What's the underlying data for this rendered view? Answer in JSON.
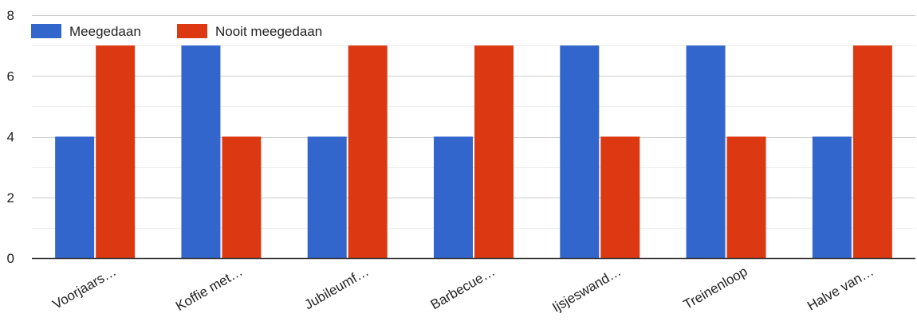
{
  "chart_data": {
    "type": "bar",
    "categories": [
      "Voorjaars…",
      "Koffie met…",
      "Jubileumf…",
      "Barbecue…",
      "Ijsjeswand…",
      "Treinenloop",
      "Halve van…"
    ],
    "series": [
      {
        "name": "Meegedaan",
        "color": "#3366cc",
        "values": [
          4,
          7,
          4,
          4,
          7,
          7,
          4
        ]
      },
      {
        "name": "Nooit meegedaan",
        "color": "#dc3912",
        "values": [
          7,
          4,
          7,
          7,
          4,
          4,
          7
        ]
      }
    ],
    "ylim": [
      0,
      8
    ],
    "yticks": [
      0,
      2,
      4,
      6,
      8
    ],
    "grid": true,
    "legend": "top-left",
    "title": "",
    "xlabel": "",
    "ylabel": ""
  }
}
